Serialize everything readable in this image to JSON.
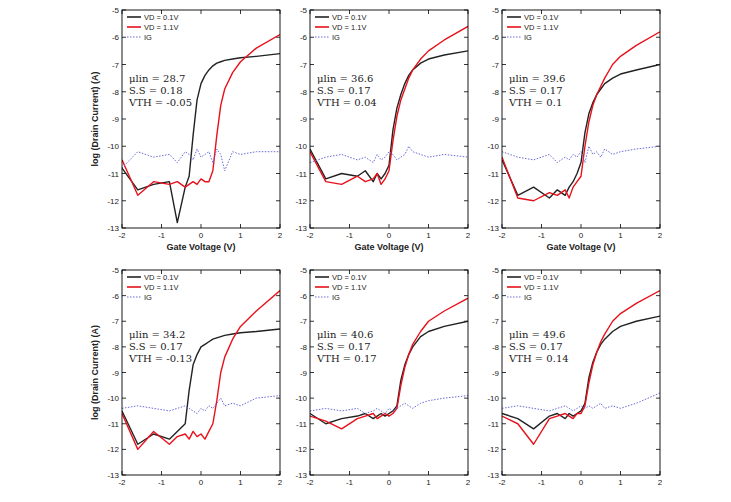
{
  "chart_data": [
    {
      "type": "line",
      "x_label": "Gate Voltage (V)",
      "y_label": "log (Drain Current) (A)",
      "x": [
        -2,
        -1.6,
        -1.2,
        -0.8,
        -0.6,
        -0.4,
        -0.3,
        -0.2,
        -0.1,
        0,
        0.1,
        0.2,
        0.3,
        0.4,
        0.5,
        0.6,
        0.8,
        1,
        1.4,
        2
      ],
      "series": [
        {
          "name": "VD = 0.1V",
          "color": "#222222",
          "line_style": "solid",
          "values": [
            -10.8,
            -11.6,
            -11.4,
            -11.3,
            -12.8,
            -11.5,
            -11.1,
            -9.6,
            -8.3,
            -7.7,
            -7.4,
            -7.2,
            -7.05,
            -6.95,
            -6.9,
            -6.85,
            -6.8,
            -6.75,
            -6.7,
            -6.6
          ]
        },
        {
          "name": "VD = 1.1V",
          "color": "#e8101a",
          "line_style": "solid",
          "values": [
            -10.5,
            -11.8,
            -11.3,
            -11.4,
            -11.3,
            -11.5,
            -11.4,
            -11.3,
            -11.4,
            -11.2,
            -11.3,
            -11.3,
            -10.9,
            -9.6,
            -8.5,
            -7.9,
            -7.3,
            -6.9,
            -6.4,
            -5.9
          ]
        },
        {
          "name": "IG",
          "color": "#6a6ad8",
          "line_style": "dotted",
          "values": [
            -10.8,
            -10.2,
            -10.4,
            -10.3,
            -10.6,
            -10.2,
            -10.3,
            -10.5,
            -10.1,
            -10.4,
            -10.3,
            -10.2,
            -10.6,
            -10.1,
            -10.3,
            -10.9,
            -10.2,
            -10.3,
            -10.2,
            -10.2
          ]
        }
      ],
      "annotations": [
        "μlin = 28.7",
        "S.S = 0.18",
        "VTH = -0.05"
      ],
      "xlim": [
        -2,
        2
      ],
      "ylim": [
        -13,
        -5
      ],
      "xticks": [
        -2,
        -1,
        0,
        1,
        2
      ],
      "yticks": [
        -13,
        -12,
        -11,
        -10,
        -9,
        -8,
        -7,
        -6,
        -5
      ],
      "legend": "upper left"
    },
    {
      "type": "line",
      "x_label": "Gate Voltage (V)",
      "x": [
        -2,
        -1.6,
        -1.2,
        -0.8,
        -0.6,
        -0.4,
        -0.3,
        -0.2,
        -0.1,
        0,
        0.1,
        0.2,
        0.3,
        0.4,
        0.5,
        0.6,
        0.8,
        1,
        1.4,
        2
      ],
      "series": [
        {
          "name": "VD = 0.1V",
          "color": "#222222",
          "line_style": "solid",
          "values": [
            -10.1,
            -11.2,
            -11.0,
            -11.1,
            -10.9,
            -11.3,
            -11.0,
            -11.2,
            -11.0,
            -10.7,
            -9.4,
            -8.6,
            -8.1,
            -7.7,
            -7.4,
            -7.2,
            -6.95,
            -6.8,
            -6.65,
            -6.5
          ]
        },
        {
          "name": "VD = 1.1V",
          "color": "#e8101a",
          "line_style": "solid",
          "values": [
            -10.2,
            -11.3,
            -11.4,
            -11.1,
            -11.3,
            -11.2,
            -11.0,
            -11.4,
            -11.2,
            -10.9,
            -9.8,
            -8.9,
            -8.3,
            -7.9,
            -7.5,
            -7.2,
            -6.8,
            -6.5,
            -6.1,
            -5.6
          ]
        },
        {
          "name": "IG",
          "color": "#6a6ad8",
          "line_style": "dotted",
          "values": [
            -10.6,
            -10.4,
            -10.3,
            -10.5,
            -10.4,
            -10.6,
            -10.3,
            -10.5,
            -10.4,
            -10.2,
            -10.3,
            -10.5,
            -10.4,
            -10.3,
            -10.0,
            -10.2,
            -10.3,
            -10.4,
            -10.3,
            -10.4
          ]
        }
      ],
      "annotations": [
        "μlin = 36.6",
        "S.S = 0.17",
        "VTH = 0.04"
      ],
      "xlim": [
        -2,
        2
      ],
      "ylim": [
        -13,
        -5
      ],
      "xticks": [
        -2,
        -1,
        0,
        1,
        2
      ],
      "yticks": [
        -13,
        -12,
        -11,
        -10,
        -9,
        -8,
        -7,
        -6,
        -5
      ],
      "legend": "upper left"
    },
    {
      "type": "line",
      "x_label": "Gate Voltage (V)",
      "x": [
        -2,
        -1.6,
        -1.2,
        -0.8,
        -0.6,
        -0.4,
        -0.3,
        -0.2,
        -0.1,
        0,
        0.1,
        0.2,
        0.3,
        0.4,
        0.5,
        0.6,
        0.8,
        1,
        1.4,
        2
      ],
      "series": [
        {
          "name": "VD = 0.1V",
          "color": "#222222",
          "line_style": "solid",
          "values": [
            -10.5,
            -11.8,
            -11.5,
            -11.9,
            -11.6,
            -11.8,
            -11.5,
            -11.3,
            -11.0,
            -10.6,
            -9.5,
            -8.8,
            -8.4,
            -8.1,
            -7.9,
            -7.7,
            -7.5,
            -7.35,
            -7.2,
            -7.0
          ]
        },
        {
          "name": "VD = 1.1V",
          "color": "#e8101a",
          "line_style": "solid",
          "values": [
            -10.4,
            -11.9,
            -12.0,
            -11.7,
            -11.8,
            -11.6,
            -11.9,
            -11.5,
            -11.3,
            -11.1,
            -10.0,
            -9.1,
            -8.5,
            -8.1,
            -7.8,
            -7.5,
            -7.0,
            -6.7,
            -6.3,
            -5.8
          ]
        },
        {
          "name": "IG",
          "color": "#6a6ad8",
          "line_style": "dotted",
          "values": [
            -10.2,
            -10.4,
            -10.5,
            -10.3,
            -10.6,
            -10.4,
            -10.5,
            -10.3,
            -10.4,
            -10.2,
            -10.6,
            -10.0,
            -10.3,
            -10.2,
            -10.4,
            -10.1,
            -10.3,
            -10.2,
            -10.1,
            -10.0
          ]
        }
      ],
      "annotations": [
        "μlin = 39.6",
        "S.S = 0.17",
        "VTH = 0.1"
      ],
      "xlim": [
        -2,
        2
      ],
      "ylim": [
        -13,
        -5
      ],
      "xticks": [
        -2,
        -1,
        0,
        1,
        2
      ],
      "yticks": [
        -13,
        -12,
        -11,
        -10,
        -9,
        -8,
        -7,
        -6,
        -5
      ],
      "legend": "upper left"
    },
    {
      "type": "line",
      "y_label": "log (Drain Current) (A)",
      "x": [
        -2,
        -1.6,
        -1.2,
        -0.8,
        -0.6,
        -0.4,
        -0.3,
        -0.2,
        -0.1,
        0,
        0.1,
        0.2,
        0.3,
        0.4,
        0.5,
        0.6,
        0.8,
        1,
        1.4,
        2
      ],
      "series": [
        {
          "name": "VD = 0.1V",
          "color": "#222222",
          "line_style": "solid",
          "values": [
            -10.5,
            -11.8,
            -11.4,
            -11.6,
            -11.3,
            -11.0,
            -9.7,
            -8.7,
            -8.3,
            -8.0,
            -7.9,
            -7.8,
            -7.7,
            -7.65,
            -7.6,
            -7.55,
            -7.5,
            -7.45,
            -7.4,
            -7.3
          ]
        },
        {
          "name": "VD = 1.1V",
          "color": "#e8101a",
          "line_style": "solid",
          "values": [
            -10.6,
            -12.0,
            -11.3,
            -11.8,
            -11.5,
            -11.4,
            -11.6,
            -11.3,
            -11.5,
            -11.4,
            -11.6,
            -11.3,
            -11.0,
            -10.1,
            -9.0,
            -8.4,
            -7.7,
            -7.2,
            -6.6,
            -5.8
          ]
        },
        {
          "name": "IG",
          "color": "#6a6ad8",
          "line_style": "dotted",
          "values": [
            -10.4,
            -10.3,
            -10.4,
            -10.5,
            -10.4,
            -10.3,
            -10.4,
            -10.5,
            -10.6,
            -10.4,
            -10.5,
            -10.3,
            -10.4,
            -10.2,
            -10.0,
            -10.3,
            -10.2,
            -10.3,
            -10.0,
            -9.9
          ]
        }
      ],
      "annotations": [
        "μlin = 34.2",
        "S.S = 0.17",
        "VTH = -0.13"
      ],
      "xlim": [
        -2,
        2
      ],
      "ylim": [
        -13,
        -5
      ],
      "xticks": [
        -2,
        -1,
        0,
        1,
        2
      ],
      "yticks": [
        -13,
        -12,
        -11,
        -10,
        -9,
        -8,
        -7,
        -6,
        -5
      ],
      "legend": "upper left"
    },
    {
      "type": "line",
      "x": [
        -2,
        -1.6,
        -1.2,
        -0.8,
        -0.6,
        -0.4,
        -0.3,
        -0.2,
        -0.1,
        0,
        0.1,
        0.2,
        0.3,
        0.4,
        0.5,
        0.6,
        0.8,
        1,
        1.4,
        2
      ],
      "series": [
        {
          "name": "VD = 0.1V",
          "color": "#222222",
          "line_style": "solid",
          "values": [
            -10.6,
            -11.0,
            -10.8,
            -10.7,
            -10.6,
            -10.8,
            -10.7,
            -10.6,
            -10.7,
            -10.6,
            -10.5,
            -10.3,
            -9.3,
            -8.7,
            -8.3,
            -8.0,
            -7.6,
            -7.4,
            -7.2,
            -7.0
          ]
        },
        {
          "name": "VD = 1.1V",
          "color": "#e8101a",
          "line_style": "solid",
          "values": [
            -10.7,
            -10.9,
            -11.2,
            -10.8,
            -10.7,
            -10.6,
            -10.8,
            -10.7,
            -10.6,
            -10.7,
            -10.6,
            -10.4,
            -9.5,
            -8.8,
            -8.3,
            -7.9,
            -7.4,
            -7.0,
            -6.6,
            -6.1
          ]
        },
        {
          "name": "IG",
          "color": "#6a6ad8",
          "line_style": "dotted",
          "values": [
            -10.5,
            -10.4,
            -10.5,
            -10.4,
            -10.6,
            -10.5,
            -10.4,
            -10.5,
            -10.6,
            -10.4,
            -10.5,
            -10.4,
            -10.3,
            -10.2,
            -10.3,
            -10.4,
            -10.2,
            -10.1,
            -10.0,
            -9.9
          ]
        }
      ],
      "annotations": [
        "μlin = 40.6",
        "S.S = 0.17",
        "VTH = 0.17"
      ],
      "xlim": [
        -2,
        2
      ],
      "ylim": [
        -13,
        -5
      ],
      "xticks": [
        -2,
        -1,
        0,
        1,
        2
      ],
      "yticks": [
        -13,
        -12,
        -11,
        -10,
        -9,
        -8,
        -7,
        -6,
        -5
      ],
      "legend": "upper left"
    },
    {
      "type": "line",
      "x": [
        -2,
        -1.6,
        -1.2,
        -0.8,
        -0.6,
        -0.4,
        -0.3,
        -0.2,
        -0.1,
        0,
        0.1,
        0.2,
        0.3,
        0.4,
        0.5,
        0.6,
        0.8,
        1,
        1.4,
        2
      ],
      "series": [
        {
          "name": "VD = 0.1V",
          "color": "#222222",
          "line_style": "solid",
          "values": [
            -10.6,
            -10.8,
            -11.2,
            -10.7,
            -10.6,
            -10.8,
            -10.6,
            -10.7,
            -10.6,
            -10.5,
            -10.2,
            -9.2,
            -8.6,
            -8.2,
            -7.9,
            -7.7,
            -7.4,
            -7.2,
            -7.0,
            -6.8
          ]
        },
        {
          "name": "VD = 1.1V",
          "color": "#e8101a",
          "line_style": "solid",
          "values": [
            -10.7,
            -11.0,
            -11.8,
            -10.8,
            -10.7,
            -10.6,
            -10.7,
            -10.8,
            -10.6,
            -10.6,
            -10.3,
            -9.4,
            -8.7,
            -8.2,
            -7.8,
            -7.5,
            -7.0,
            -6.7,
            -6.3,
            -5.8
          ]
        },
        {
          "name": "IG",
          "color": "#6a6ad8",
          "line_style": "dotted",
          "values": [
            -10.4,
            -10.3,
            -10.4,
            -10.5,
            -10.4,
            -10.3,
            -10.4,
            -10.5,
            -10.4,
            -10.3,
            -10.4,
            -10.3,
            -10.4,
            -10.3,
            -10.2,
            -10.4,
            -10.3,
            -10.4,
            -10.2,
            -9.8
          ]
        }
      ],
      "annotations": [
        "μlin = 49.6",
        "S.S = 0.17",
        "VTH = 0.14"
      ],
      "xlim": [
        -2,
        2
      ],
      "ylim": [
        -13,
        -5
      ],
      "xticks": [
        -2,
        -1,
        0,
        1,
        2
      ],
      "yticks": [
        -13,
        -12,
        -11,
        -10,
        -9,
        -8,
        -7,
        -6,
        -5
      ],
      "legend": "upper left"
    }
  ]
}
